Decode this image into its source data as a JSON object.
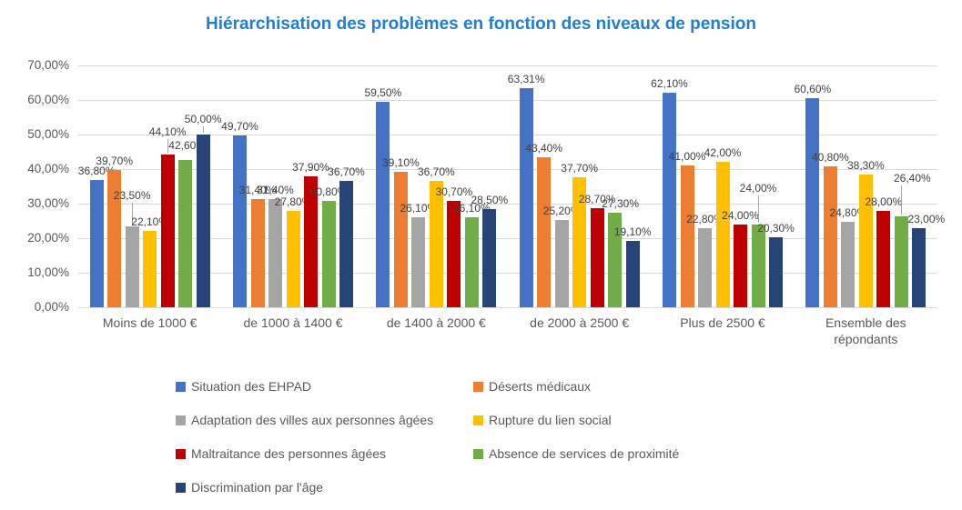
{
  "chart_data": {
    "type": "bar",
    "title": "Hiérarchisation des problèmes en fonction des niveaux de pension",
    "title_color": "#1F7DD2",
    "categories": [
      "Moins de 1000 €",
      "de 1000 à 1400 €",
      "de 1400 à 2000 €",
      "de 2000 à 2500 €",
      "Plus de 2500 €",
      "Ensemble des répondants"
    ],
    "series": [
      {
        "name": "Situation des EHPAD",
        "color": "#4472C4",
        "values": [
          36.8,
          49.7,
          59.5,
          63.31,
          62.1,
          60.6
        ]
      },
      {
        "name": "Déserts médicaux",
        "color": "#ED7D31",
        "values": [
          39.7,
          31.4,
          39.1,
          43.4,
          41.0,
          40.8
        ]
      },
      {
        "name": "Adaptation des villes aux personnes âgées",
        "color": "#A5A5A5",
        "values": [
          23.5,
          31.4,
          26.1,
          25.2,
          22.8,
          24.8
        ]
      },
      {
        "name": "Rupture du lien social",
        "color": "#FFC000",
        "values": [
          22.1,
          27.8,
          36.7,
          37.7,
          42.0,
          38.3
        ]
      },
      {
        "name": "Maltraitance des personnes âgées",
        "color": "#C00000",
        "values": [
          44.1,
          37.9,
          30.7,
          28.7,
          24.0,
          28.0
        ]
      },
      {
        "name": "Absence de services de proximité",
        "color": "#70AD47",
        "values": [
          42.6,
          30.8,
          26.1,
          27.3,
          24.0,
          26.4
        ]
      },
      {
        "name": "Discrimination par l'âge",
        "color": "#264478",
        "values": [
          50.0,
          36.7,
          28.5,
          19.1,
          20.3,
          23.0
        ]
      }
    ],
    "y_axis": {
      "min": 0,
      "max": 70,
      "step": 10,
      "tick_labels": [
        "70,00%",
        "60,00%",
        "50,00%",
        "40,00%",
        "30,00%",
        "20,00%",
        "10,00%",
        "0,00%"
      ]
    },
    "data_label_format": "##,00%",
    "grid": "horizontal",
    "legend_position": "bottom",
    "gridline_color": "#D9D9D9",
    "axis_text_color": "#595959",
    "data_label_color": "#404040"
  }
}
